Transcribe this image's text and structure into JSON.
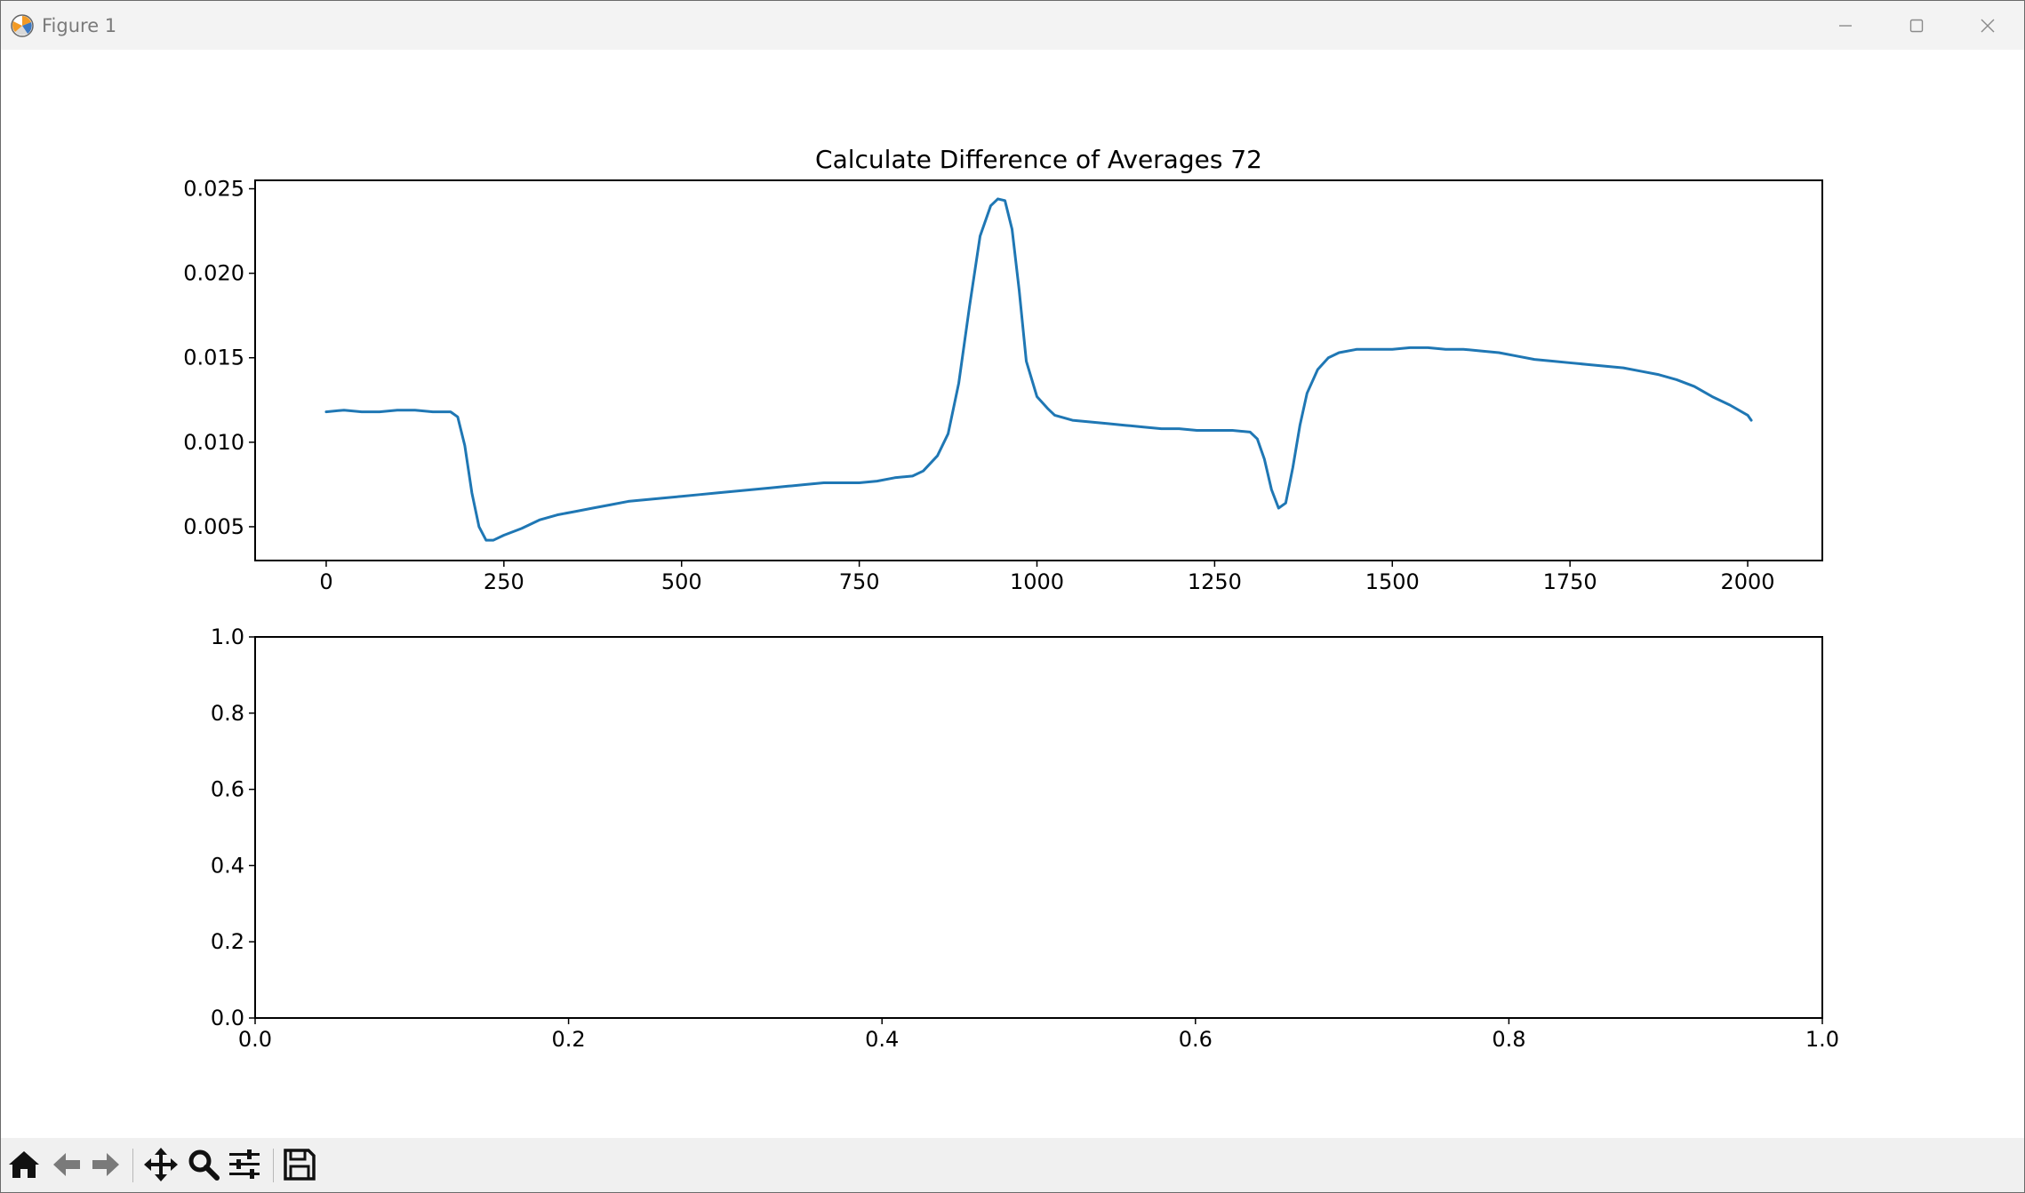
{
  "window": {
    "title": "Figure 1",
    "icon": "matplotlib-icon",
    "controls": [
      "minimize-icon",
      "maximize-icon",
      "close-icon"
    ]
  },
  "toolbar": {
    "buttons": [
      "home-icon",
      "back-arrow-icon",
      "forward-arrow-icon",
      "pan-icon",
      "zoom-icon",
      "configure-subplots-icon",
      "save-icon"
    ]
  },
  "colors": {
    "line": "#1f77b4",
    "titlebar": "#f3f3f3",
    "toolbar": "#f0f0f0"
  },
  "chart_data": [
    {
      "type": "line",
      "title": "Calculate Difference of Averages 72",
      "xlabel": "",
      "ylabel": "",
      "xlim": [
        -100,
        2105
      ],
      "ylim": [
        0.003,
        0.0255
      ],
      "xticks": [
        0,
        250,
        500,
        750,
        1000,
        1250,
        1500,
        1750,
        2000
      ],
      "yticks": [
        0.005,
        0.01,
        0.015,
        0.02,
        0.025
      ],
      "xtick_labels": [
        "0",
        "250",
        "500",
        "750",
        "1000",
        "1250",
        "1500",
        "1750",
        "2000"
      ],
      "ytick_labels": [
        "0.005",
        "0.010",
        "0.015",
        "0.020",
        "0.025"
      ],
      "grid": false,
      "series": [
        {
          "color": "#1f77b4",
          "x": [
            0,
            25,
            50,
            75,
            100,
            125,
            150,
            175,
            185,
            195,
            205,
            215,
            225,
            235,
            250,
            275,
            300,
            325,
            350,
            375,
            400,
            425,
            450,
            475,
            500,
            525,
            550,
            575,
            600,
            625,
            650,
            675,
            700,
            725,
            750,
            775,
            800,
            825,
            840,
            860,
            875,
            890,
            905,
            920,
            935,
            945,
            955,
            965,
            975,
            985,
            1000,
            1015,
            1025,
            1050,
            1075,
            1100,
            1125,
            1150,
            1175,
            1200,
            1225,
            1250,
            1275,
            1300,
            1310,
            1320,
            1330,
            1340,
            1350,
            1360,
            1370,
            1380,
            1395,
            1410,
            1425,
            1450,
            1475,
            1500,
            1525,
            1550,
            1575,
            1600,
            1625,
            1650,
            1675,
            1700,
            1725,
            1750,
            1775,
            1800,
            1825,
            1850,
            1875,
            1900,
            1925,
            1950,
            1975,
            2000,
            2005
          ],
          "y": [
            0.0118,
            0.0119,
            0.0118,
            0.0118,
            0.0119,
            0.0119,
            0.0118,
            0.0118,
            0.0115,
            0.0098,
            0.007,
            0.005,
            0.0042,
            0.0042,
            0.0045,
            0.0049,
            0.0054,
            0.0057,
            0.0059,
            0.0061,
            0.0063,
            0.0065,
            0.0066,
            0.0067,
            0.0068,
            0.0069,
            0.007,
            0.0071,
            0.0072,
            0.0073,
            0.0074,
            0.0075,
            0.0076,
            0.0076,
            0.0076,
            0.0077,
            0.0079,
            0.008,
            0.0083,
            0.0092,
            0.0105,
            0.0135,
            0.018,
            0.0222,
            0.024,
            0.0244,
            0.0243,
            0.0226,
            0.019,
            0.0148,
            0.0127,
            0.012,
            0.0116,
            0.0113,
            0.0112,
            0.0111,
            0.011,
            0.0109,
            0.0108,
            0.0108,
            0.0107,
            0.0107,
            0.0107,
            0.0106,
            0.0102,
            0.009,
            0.0072,
            0.0061,
            0.0064,
            0.0085,
            0.011,
            0.0129,
            0.0143,
            0.015,
            0.0153,
            0.0155,
            0.0155,
            0.0155,
            0.0156,
            0.0156,
            0.0155,
            0.0155,
            0.0154,
            0.0153,
            0.0151,
            0.0149,
            0.0148,
            0.0147,
            0.0146,
            0.0145,
            0.0144,
            0.0142,
            0.014,
            0.0137,
            0.0133,
            0.0127,
            0.0122,
            0.0116,
            0.0113
          ]
        }
      ]
    },
    {
      "type": "line",
      "title": "",
      "xlim": [
        0.0,
        1.0
      ],
      "ylim": [
        0.0,
        1.0
      ],
      "xticks": [
        0.0,
        0.2,
        0.4,
        0.6,
        0.8,
        1.0
      ],
      "yticks": [
        0.0,
        0.2,
        0.4,
        0.6,
        0.8,
        1.0
      ],
      "xtick_labels": [
        "0.0",
        "0.2",
        "0.4",
        "0.6",
        "0.8",
        "1.0"
      ],
      "ytick_labels": [
        "0.0",
        "0.2",
        "0.4",
        "0.6",
        "0.8",
        "1.0"
      ],
      "grid": false,
      "series": []
    }
  ]
}
